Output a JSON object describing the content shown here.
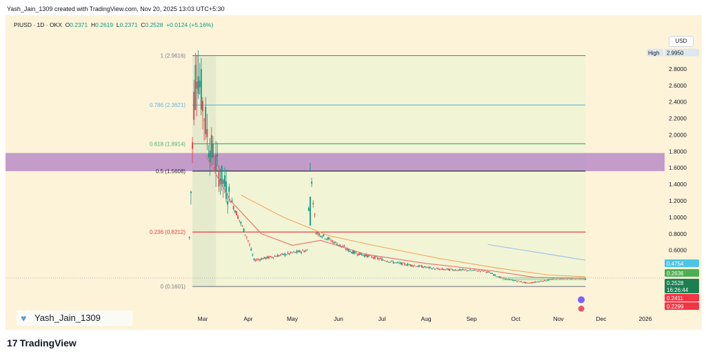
{
  "header": {
    "credit": "Yash_Jain_1309 created with TradingView.com, Nov 20, 2025 13:03 UTC+5:30"
  },
  "symbol": {
    "name": "PIUSD · 1D · OKX",
    "o_label": "O",
    "o_value": "0.2371",
    "h_label": "H",
    "h_value": "0.2619",
    "l_label": "L",
    "l_value": "0.2371",
    "c_label": "C",
    "c_value": "0.2528",
    "change": "+0.0124 (+5.16%)"
  },
  "currency_button": "USD",
  "watermark": "Yash_Jain_1309",
  "footer": {
    "logo_mark": "17",
    "logo_text": "TradingView"
  },
  "colors": {
    "background": "#fdf3d9",
    "retracement_zone": "#eff4d3",
    "purple_zone": "#b98cc6",
    "candle_up": "#089981",
    "candle_down": "#f23645",
    "ma_orange": "#f7a35c",
    "ma_red": "#f0696a",
    "trend_blue": "#9bc4e2"
  },
  "chart_data": {
    "type": "candlestick",
    "title": "PIUSD · 1D · OKX",
    "x_axis": {
      "ticks": [
        "Mar",
        "Apr",
        "May",
        "Jun",
        "Jul",
        "Aug",
        "Sep",
        "Oct",
        "Nov",
        "Dec",
        "2026"
      ]
    },
    "y_axis": {
      "ticks": [
        "2.8000",
        "2.6000",
        "2.4000",
        "2.2000",
        "2.0000",
        "1.8000",
        "1.6000",
        "1.4000",
        "1.2000",
        "1.0000",
        "0.8000",
        "0.6000"
      ],
      "range": [
        0.12,
        3.05
      ]
    },
    "fib_levels": [
      {
        "label": "1 (2.9616)",
        "value": 2.9616,
        "color": "#787b86"
      },
      {
        "label": "0.786 (2.3621)",
        "value": 2.3621,
        "color": "#5fb4d9"
      },
      {
        "label": "0.618 (1.8914)",
        "value": 1.8914,
        "color": "#4caf7a"
      },
      {
        "label": "0.5 (1.5608)",
        "value": 1.5608,
        "color": "#2a2e39"
      },
      {
        "label": "0.236 (0.8212)",
        "value": 0.8212,
        "color": "#f23645"
      },
      {
        "label": "0 (0.1601)",
        "value": 0.1601,
        "color": "#787b86"
      }
    ],
    "purple_zone": {
      "from": 1.56,
      "to": 1.78
    },
    "price_labels": [
      {
        "text": "High",
        "value": "2.9950",
        "kind": "high"
      },
      {
        "text": "",
        "value": "0.4754",
        "kind": "cyan"
      },
      {
        "text": "",
        "value": "0.2636",
        "kind": "green"
      },
      {
        "text": "",
        "value": "0.2528",
        "kind": "dark-green"
      },
      {
        "text": "",
        "value": "16:26:44",
        "kind": "dark-green-countdown"
      },
      {
        "text": "",
        "value": "0.2411",
        "kind": "red"
      },
      {
        "text": "",
        "value": "0.2299",
        "kind": "red"
      }
    ],
    "key_points": [
      {
        "date": "2025-02-20",
        "price": 0.75
      },
      {
        "date": "2025-02-24",
        "price": 2.99
      },
      {
        "date": "2025-03-05",
        "price": 1.9
      },
      {
        "date": "2025-03-12",
        "price": 1.55
      },
      {
        "date": "2025-04-01",
        "price": 0.72
      },
      {
        "date": "2025-04-05",
        "price": 0.48
      },
      {
        "date": "2025-05-11",
        "price": 0.6
      },
      {
        "date": "2025-05-13",
        "price": 1.63
      },
      {
        "date": "2025-05-15",
        "price": 1.2
      },
      {
        "date": "2025-05-17",
        "price": 0.82
      },
      {
        "date": "2025-06-10",
        "price": 0.58
      },
      {
        "date": "2025-07-10",
        "price": 0.45
      },
      {
        "date": "2025-08-10",
        "price": 0.37
      },
      {
        "date": "2025-09-10",
        "price": 0.35
      },
      {
        "date": "2025-09-22",
        "price": 0.26
      },
      {
        "date": "2025-10-10",
        "price": 0.2
      },
      {
        "date": "2025-11-01",
        "price": 0.26
      },
      {
        "date": "2025-11-20",
        "price": 0.2528
      }
    ]
  }
}
